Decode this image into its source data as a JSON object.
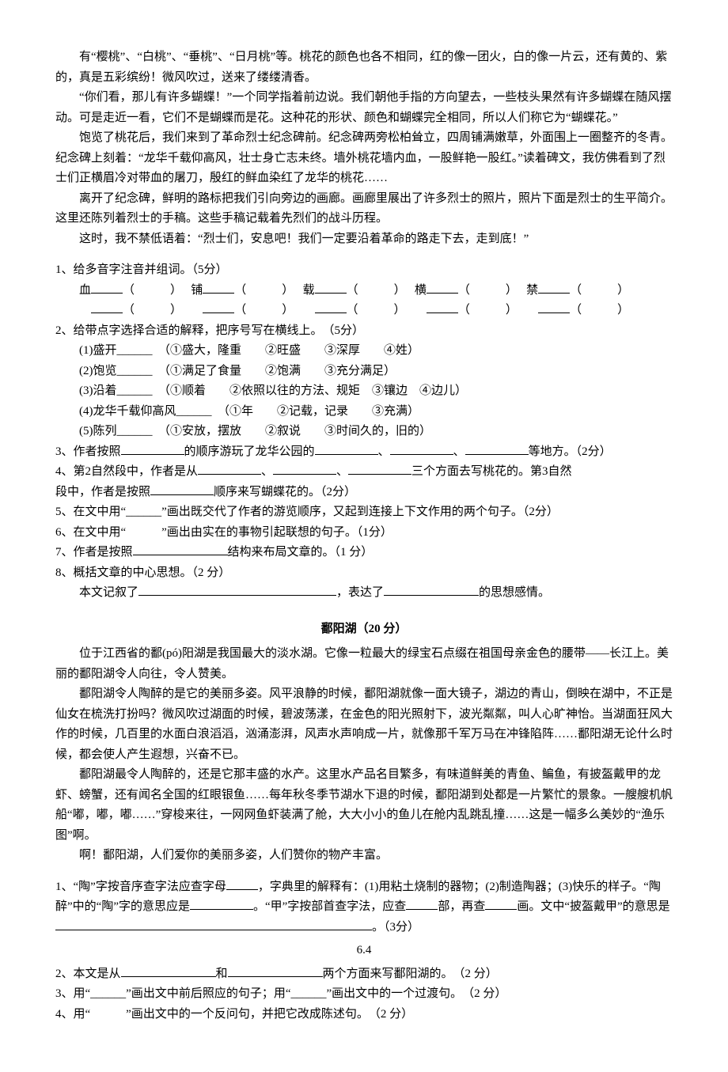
{
  "passage1": {
    "p1": "有“樱桃”、“白桃”、“垂桃”、“日月桃”等。桃花的颜色也各不相同，红的像一团火，白的像一片云，还有黄的、紫的，真是五彩缤纷！微风吹过，送来了缕缕清香。",
    "p2": "“你们看，那儿有许多蝴蝶！”一个同学指着前边说。我们朝他手指的方向望去，一些枝头果然有许多蝴蝶在随风摆动。可是走近一看，它们不是蝴蝶而是花。这种花的形状、颜色和蝴蝶完全相同，所以人们称它为“蝴蝶花。”",
    "p3": "饱览了桃花后，我们来到了革命烈士纪念碑前。纪念碑两旁松柏耸立，四周铺满嫩草，外面围上一圈整齐的冬青。纪念碑上刻着：“龙华千载仰高风，壮士身亡志未终。墙外桃花墙内血，一股鲜艳一股红。”读着碑文，我仿佛看到了烈士们正横眉冷对带血的屠刀，殷红的鲜血染红了龙华的桃花……",
    "p4": "离开了纪念碑，鲜明的路标把我们引向旁边的画廊。画廊里展出了许多烈士的照片，照片下面是烈士的生平简介。这里还陈列着烈士的手稿。这些手稿记载着先烈们的战斗历程。",
    "p5": "这时，我不禁低语着：“烈士们，安息吧！我们一定要沿着革命的路走下去，走到底！”"
  },
  "q1": {
    "stem": "1、给多音字注音并组词。（5分）",
    "chars": [
      "血",
      "铺",
      "载",
      "横",
      "禁"
    ]
  },
  "q2": {
    "stem": "2、给带点字选择合适的解释，把序号写在横线上。　（5分）",
    "items": [
      "(1)盛开______　（①盛大，隆重　　②旺盛　　③深厚　　④姓）",
      "(2)饱览______　（①满足了食量　　②饱满　　③充分满足）",
      "(3)沿着______　（①顺着　　②依照以往的方法、规矩　③镶边　④边儿）",
      "(4)龙华千载仰高风______　（①年　　②记载，记录　　③充满）",
      "(5)陈列______　（①安放，摆放　　②叙说　　③时间久的，旧的）"
    ]
  },
  "q3": {
    "before": "3、作者按照",
    "mid1": "的顺序游玩了龙华公园的",
    "tail": "等地方。（2分）"
  },
  "q4": {
    "l1a": "4、第2自然段中，作者是从",
    "l1b": "三个方面去写桃花的。第3自然",
    "l2a": "段中，作者是按照",
    "l2b": "顺序来写蝴蝶花的。（2分）"
  },
  "q5": "5、在文中用“______”画出既交代了作者的游览顺序，又起到连接上下文作用的两个句子。（2分）",
  "q6": "6、在文中用“　　　”画出由实在的事物引起联想的句子。（1分）",
  "q7": {
    "a": "7、作者是按照",
    "b": "结构来布局文章的。（1 分）"
  },
  "q8": {
    "stem": "8、概括文章的中心思想。（2 分）",
    "a": "本文记叙了",
    "b": "，表达了",
    "c": "的思想感情。"
  },
  "passage2": {
    "title": "鄱阳湖（20 分）",
    "p1": "位于江西省的鄱(pó)阳湖是我国最大的淡水湖。它像一粒最大的绿宝石点缀在祖国母亲金色的腰带——长江上。美丽的鄱阳湖令人向往，令人赞美。",
    "p2": "鄱阳湖令人陶醉的是它的美丽多姿。风平浪静的时候，鄱阳湖就像一面大镜子，湖边的青山，倒映在湖中，不正是仙女在梳洗打扮吗？微风吹过湖面的时候，碧波荡漾，在金色的阳光照射下，波光粼粼，叫人心旷神怡。当湖面狂风大作的时候，几百里的水面白浪滔滔，汹涌澎湃，风声水声响成一片，就像那千军万马在冲锋陷阵……鄱阳湖无论什么时候，都会使人产生遐想，兴奋不已。",
    "p3": "鄱阳湖最令人陶醉的，还是它那丰盛的水产。这里水产品名目繁多，有味道鲜美的青鱼、鳊鱼，有披盔戴甲的龙虾、螃蟹，还有闻名全国的红眼银鱼……每年秋冬季节湖水下退的时候，鄱阳湖到处都是一片繁忙的景象。一艘艘机帆船“嘟，嘟，嘟……”穿梭来往，一网网鱼虾装满了舱，大大小小的鱼儿在舱内乱跳乱撞……这是一幅多么美妙的“渔乐图”啊。",
    "p4": "啊！鄱阳湖，人们爱你的美丽多姿，人们赞你的物产丰富。"
  },
  "q2_1": {
    "a": "1、“陶”字按音序查字法应查字母",
    "b": "，字典里的解释有：(1)用粘土烧制的器物；(2)制造陶器；(3)快乐的样子。“陶醉”中的“陶”字的意思应是",
    "c": "。“甲”字按部首查字法，应查",
    "d": "部，再查",
    "e": "画。文中“披盔戴甲”的意思是",
    "f": "。（3分）"
  },
  "pagenum": "6.4",
  "q2_2": {
    "a": "2、本文是从",
    "b": "和",
    "c": "两个方面来写鄱阳湖的。　（2 分）"
  },
  "q2_3": "3、用“______”画出文中前后照应的句子；用“______”画出文中的一个过渡句。　（2 分）",
  "q2_4": "4、用“　　　”画出文中的一个反问句，并把它改成陈述句。　（2 分）"
}
